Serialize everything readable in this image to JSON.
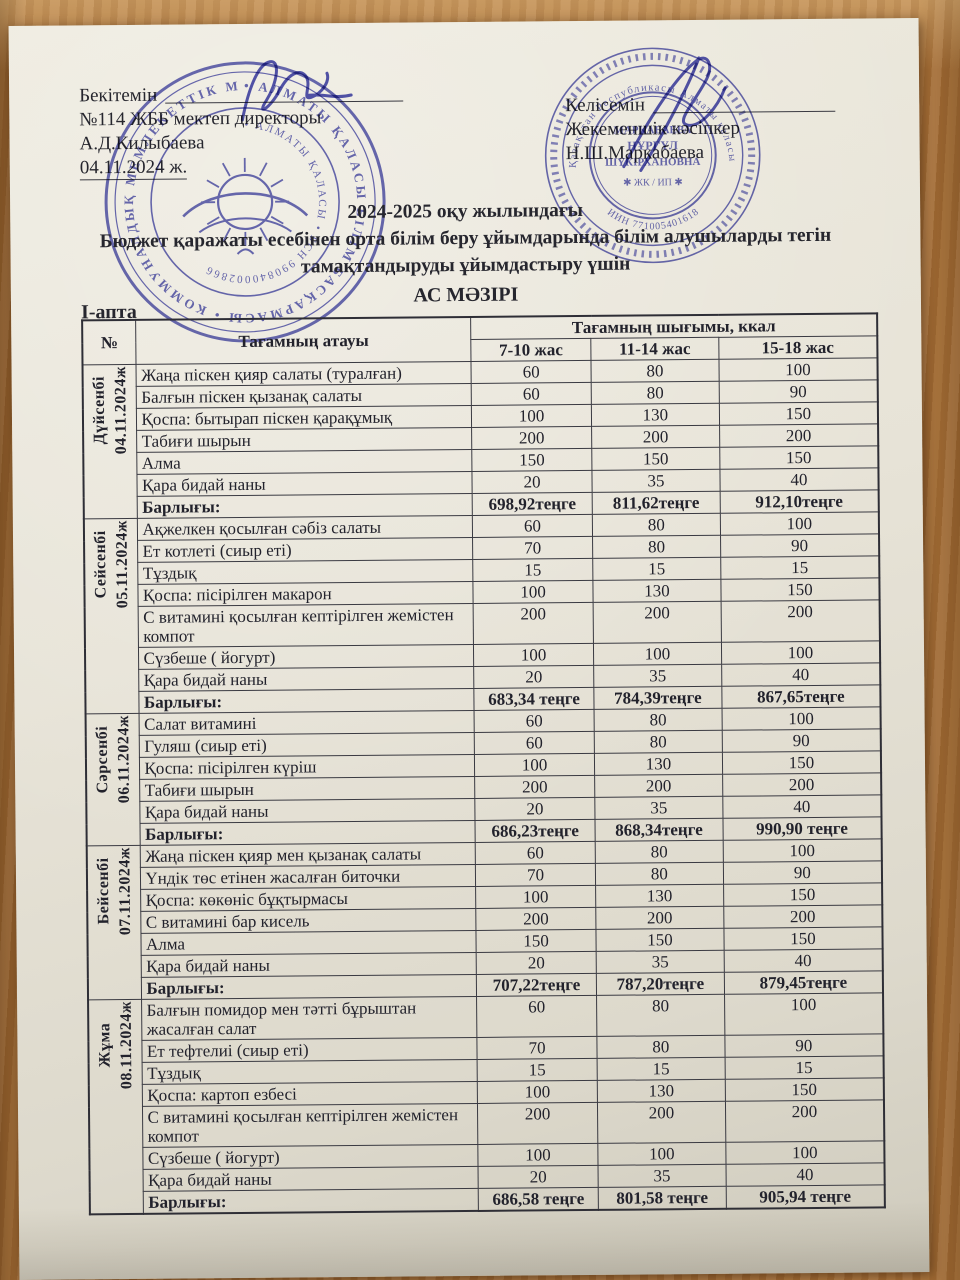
{
  "colors": {
    "stamp_ink": "#4a4cb0",
    "paper": "#e7e3d7",
    "wood": "#aa733c",
    "table_line": "#3a3a42"
  },
  "approval_left": {
    "approve_label": "Бекітемін",
    "line2": "№114 ЖББ мектеп директоры",
    "line3": "А.Д.Килыбаева",
    "line4": "04.11.2024 ж."
  },
  "approval_right": {
    "agree_label": "Келісемін",
    "line2": "Жекеменшік кәсіпкер",
    "line3": "Н.Ш.Маркабаева"
  },
  "title": {
    "line1": "2024-2025 оқу жылындағы",
    "line2": "Бюджет қаражаты есебінен орта білім беру ұйымдарында білім алушыларды тегін",
    "line3": "тамақтандыруды ұйымдастыру үшін",
    "line4": "АС МӘЗІРІ"
  },
  "week_label": "І-апта",
  "stamp_school": {
    "ring_text": "• АЛМАТЫ ҚАЛАСЫ БІЛІМ БАСҚАРМАСЫ • КОММУНАЛДЫҚ МЕМЛЕКЕТТІК МЕКЕМЕСІ",
    "inner_text": "• АЛМАТЫ ҚАЛАСЫ • БСН 990840002866"
  },
  "stamp_entrepreneur": {
    "ring_text": "Қазақстан Республикасы Алматы қаласы • Жеке кәсіпкер •",
    "name_line1": "МАРКАБАЕВА",
    "name_line2": "НҰРГҮЛ",
    "name_line3": "ШҮКІРХАНОВНА",
    "type_line": "✱ ЖК / ИП ✱",
    "iin_line": "ИИН 771005401618"
  },
  "menu_table": {
    "col_no": "№",
    "col_dish": "Тағамның атауы",
    "col_output": "Тағамның шығымы, ккал",
    "age_groups": [
      "7-10 жас",
      "11-14 жас",
      "15-18 жас"
    ],
    "total_label": "Барлығы:",
    "days": [
      {
        "day": "Дүйсенбі",
        "date": "04.11.2024ж",
        "rows": [
          {
            "dish": "Жаңа піскен қияр салаты  (туралған)",
            "kcal": [
              "60",
              "80",
              "100"
            ]
          },
          {
            "dish": "Балғын піскен қызанақ салаты",
            "kcal": [
              "60",
              "80",
              "90"
            ]
          },
          {
            "dish": "Қоспа: бытырап піскен қарақұмық",
            "kcal": [
              "100",
              "130",
              "150"
            ]
          },
          {
            "dish": "Табиғи шырын",
            "kcal": [
              "200",
              "200",
              "200"
            ]
          },
          {
            "dish": "Алма",
            "kcal": [
              "150",
              "150",
              "150"
            ]
          },
          {
            "dish": "Қара бидай наны",
            "kcal": [
              "20",
              "35",
              "40"
            ]
          }
        ],
        "totals": [
          "698,92теңге",
          "811,62теңге",
          "912,10теңге"
        ]
      },
      {
        "day": "Сейсенбі",
        "date": "05.11.2024ж",
        "rows": [
          {
            "dish": "Ақжелкен қосылған сәбіз салаты",
            "kcal": [
              "60",
              "80",
              "100"
            ]
          },
          {
            "dish": "Ет котлеті (сиыр еті)",
            "kcal": [
              "70",
              "80",
              "90"
            ]
          },
          {
            "dish": "Тұздық",
            "kcal": [
              "15",
              "15",
              "15"
            ]
          },
          {
            "dish": "Қоспа:  пісірілген макарон",
            "kcal": [
              "100",
              "130",
              "150"
            ]
          },
          {
            "dish": "С витамині қосылған кептірілген жемістен компот",
            "kcal": [
              "200",
              "200",
              "200"
            ]
          },
          {
            "dish": "Сүзбеше ( йогурт)",
            "kcal": [
              "100",
              "100",
              "100"
            ]
          },
          {
            "dish": "Қара бидай наны",
            "kcal": [
              "20",
              "35",
              "40"
            ]
          }
        ],
        "totals": [
          "683,34 теңге",
          "784,39теңге",
          "867,65теңге"
        ]
      },
      {
        "day": "Сәрсенбі",
        "date": "06.11.2024ж",
        "rows": [
          {
            "dish": "Салат витамині",
            "kcal": [
              "60",
              "80",
              "100"
            ]
          },
          {
            "dish": "Гуляш (сиыр еті)",
            "kcal": [
              "60",
              "80",
              "90"
            ]
          },
          {
            "dish": "Қоспа:  пісірілген күріш",
            "kcal": [
              "100",
              "130",
              "150"
            ]
          },
          {
            "dish": "Табиғи шырын",
            "kcal": [
              "200",
              "200",
              "200"
            ]
          },
          {
            "dish": "Қара бидай наны",
            "kcal": [
              "20",
              "35",
              "40"
            ]
          }
        ],
        "totals": [
          "686,23теңге",
          "868,34теңге",
          "990,90 теңге"
        ]
      },
      {
        "day": "Бейсенбі",
        "date": "07.11.2024ж",
        "rows": [
          {
            "dish": "Жаңа піскен қияр мен қызанақ салаты",
            "kcal": [
              "60",
              "80",
              "100"
            ]
          },
          {
            "dish": "Үндік төс етінен  жасалған биточки",
            "kcal": [
              "70",
              "80",
              "90"
            ]
          },
          {
            "dish": "Қоспа: көкөніс бұқтырмасы",
            "kcal": [
              "100",
              "130",
              "150"
            ]
          },
          {
            "dish": "С витамині бар кисель",
            "kcal": [
              "200",
              "200",
              "200"
            ]
          },
          {
            "dish": "Алма",
            "kcal": [
              "150",
              "150",
              "150"
            ]
          },
          {
            "dish": "Қара бидай наны",
            "kcal": [
              "20",
              "35",
              "40"
            ]
          }
        ],
        "totals": [
          "707,22теңге",
          "787,20теңге",
          "879,45теңге"
        ]
      },
      {
        "day": "Жұма",
        "date": "08.11.2024ж",
        "rows": [
          {
            "dish": "Балғын помидор мен тәтті бұрыштан жасалған салат",
            "kcal": [
              "60",
              "80",
              "100"
            ]
          },
          {
            "dish": "Ет тефтелиі (сиыр еті)",
            "kcal": [
              "70",
              "80",
              "90"
            ]
          },
          {
            "dish": "Тұздық",
            "kcal": [
              "15",
              "15",
              "15"
            ]
          },
          {
            "dish": "Қоспа:  картоп езбесі",
            "kcal": [
              "100",
              "130",
              "150"
            ]
          },
          {
            "dish": "С витамині қосылған кептірілген жемістен компот",
            "kcal": [
              "200",
              "200",
              "200"
            ]
          },
          {
            "dish": "Сүзбеше ( йогурт)",
            "kcal": [
              "100",
              "100",
              "100"
            ]
          },
          {
            "dish": "Қара бидай наны",
            "kcal": [
              "20",
              "35",
              "40"
            ]
          }
        ],
        "totals": [
          "686,58 теңге",
          "801,58 теңге",
          "905,94 теңге"
        ]
      }
    ]
  }
}
